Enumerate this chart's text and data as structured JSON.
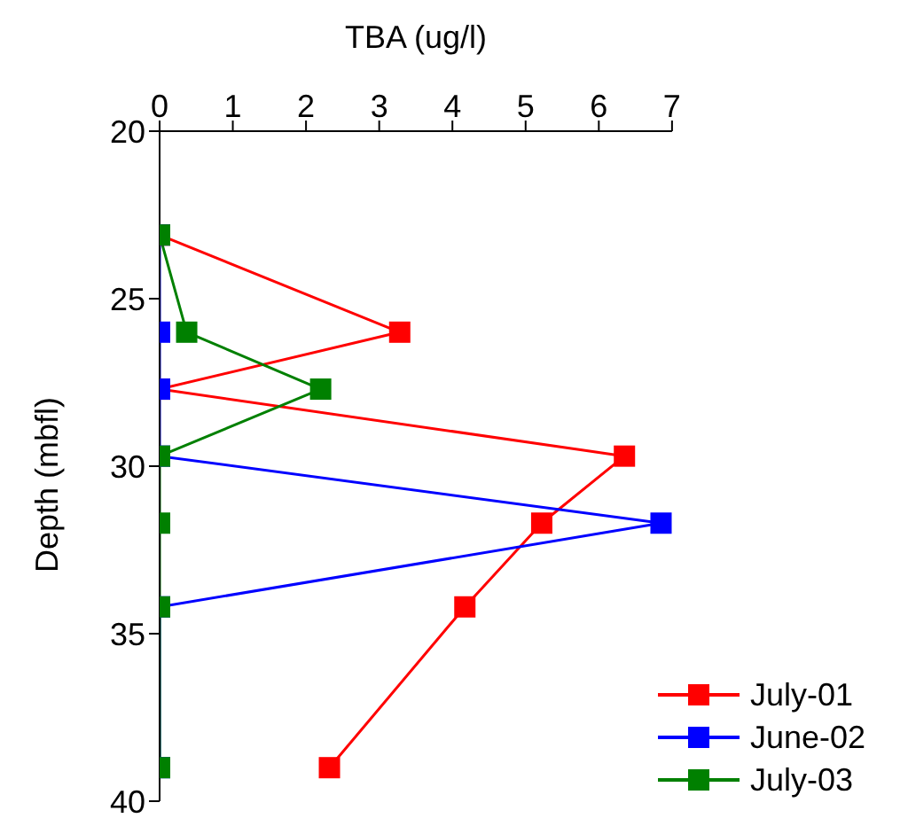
{
  "chart_data": {
    "type": "line",
    "orientation": "horizontal",
    "xlabel": "TBA (ug/l)",
    "ylabel": "Depth (mbfl)",
    "x": [
      23.1,
      26.0,
      27.7,
      29.7,
      31.7,
      34.2,
      39.0
    ],
    "xlim": [
      0,
      7
    ],
    "xticks": [
      0,
      1,
      2,
      3,
      4,
      5,
      6,
      7
    ],
    "ylim": [
      40,
      20
    ],
    "yticks": [
      20,
      25,
      30,
      35,
      40
    ],
    "grid": false,
    "legend": "bottom right",
    "marker": "square",
    "line_style": "solid",
    "series": [
      {
        "name": "July-01",
        "color": "#ff0000",
        "values": [
          0,
          3.28,
          0,
          6.35,
          5.22,
          4.17,
          2.32
        ]
      },
      {
        "name": "June-02",
        "color": "#0000ff",
        "values": [
          0,
          0,
          0,
          0,
          6.85,
          0,
          0
        ]
      },
      {
        "name": "July-03",
        "color": "#008000",
        "values": [
          0,
          0.37,
          2.2,
          0,
          0,
          0,
          0
        ]
      }
    ]
  }
}
